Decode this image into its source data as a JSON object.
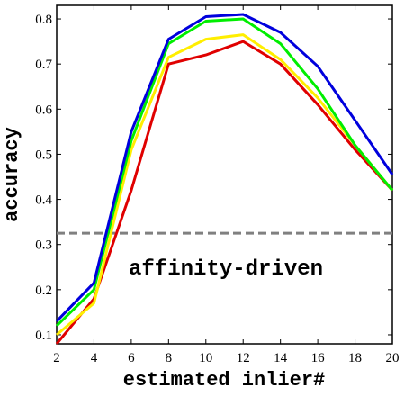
{
  "chart_data": {
    "type": "line",
    "title": "",
    "xlabel": "estimated inlier#",
    "ylabel": "accuracy",
    "xlim": [
      2,
      20
    ],
    "ylim": [
      0.08,
      0.83
    ],
    "x": [
      2,
      4,
      6,
      8,
      10,
      12,
      14,
      16,
      18,
      20
    ],
    "xticks": [
      2,
      4,
      6,
      8,
      10,
      12,
      14,
      16,
      18,
      20
    ],
    "yticks": [
      0.1,
      0.2,
      0.3,
      0.4,
      0.5,
      0.6,
      0.7,
      0.8
    ],
    "grid": false,
    "series": [
      {
        "color": "#e00000",
        "values": [
          0.08,
          0.18,
          0.42,
          0.7,
          0.72,
          0.75,
          0.7,
          0.61,
          0.51,
          0.42
        ]
      },
      {
        "color": "#ffee00",
        "values": [
          0.1,
          0.17,
          0.51,
          0.715,
          0.755,
          0.765,
          0.71,
          0.625,
          0.52,
          0.42
        ]
      },
      {
        "color": "#00ee00",
        "values": [
          0.12,
          0.2,
          0.53,
          0.745,
          0.795,
          0.8,
          0.745,
          0.645,
          0.52,
          0.42
        ]
      },
      {
        "color": "#0000dd",
        "values": [
          0.13,
          0.215,
          0.55,
          0.755,
          0.805,
          0.81,
          0.77,
          0.695,
          0.575,
          0.455
        ]
      }
    ],
    "reference_lines": [
      {
        "y": 0.325,
        "style": "dashed",
        "color": "#808080"
      }
    ],
    "annotations": [
      {
        "text": "affinity-driven"
      }
    ]
  }
}
